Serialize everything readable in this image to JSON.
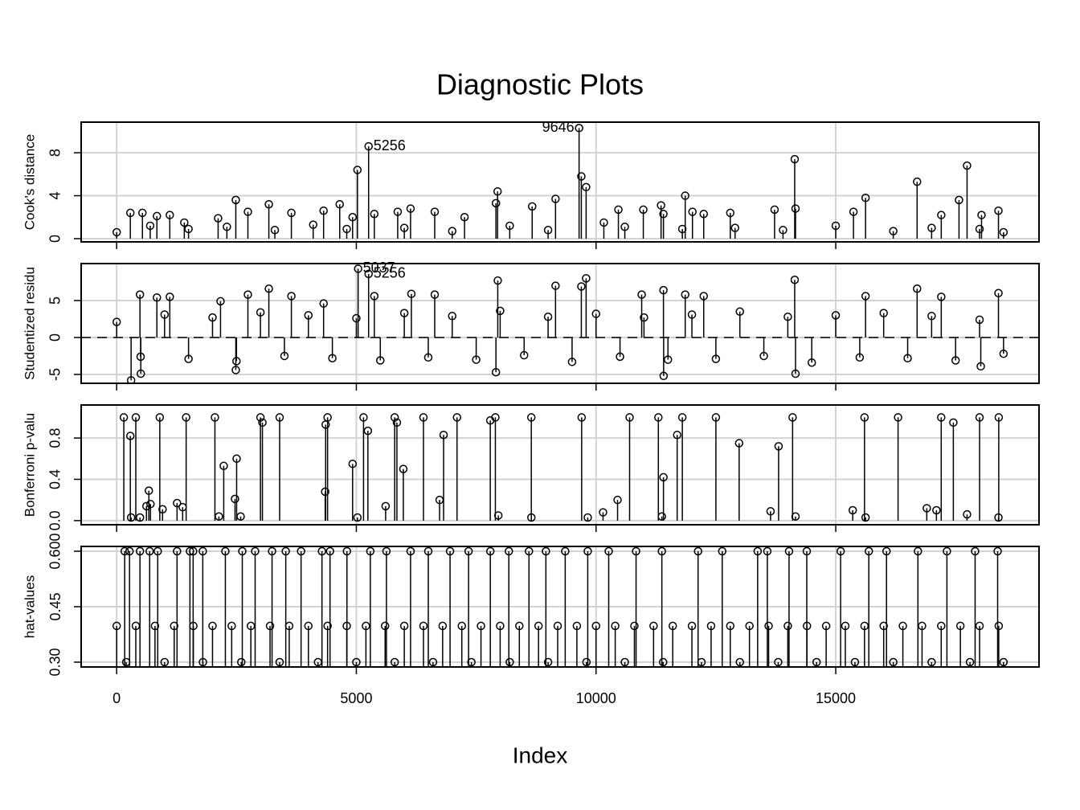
{
  "chart_data": [
    {
      "type": "stem",
      "title": "Diagnostic Plots",
      "ylabel": "Cook's distance",
      "xlim": [
        -740,
        19240
      ],
      "ylim": [
        -0.3,
        10.85
      ],
      "yticks": [
        0,
        4,
        8
      ],
      "xticks": [
        0,
        5000,
        10000,
        15000
      ],
      "grid": true,
      "color": "#000000",
      "series": [
        {
          "x": [
            286,
            538,
            840,
            1109,
            1411,
            2117,
            2486,
            2738,
            3175,
            3645,
            4317,
            4653,
            4922,
            5023,
            5256,
            5375,
            5863,
            6131,
            6635,
            7257,
            7912,
            7946,
            8668,
            9155,
            9646,
            9693,
            9793,
            10163,
            10466,
            10986,
            11356,
            11406,
            11860,
            12011,
            12246,
            12800,
            13724,
            14144,
            14161,
            15370,
            15622,
            16697,
            17201,
            17571,
            17739,
            18041,
            18394,
            1,
            700,
            1500,
            2300,
            3300,
            4100,
            4800,
            6000,
            7000,
            8200,
            9000,
            10600,
            11800,
            12900,
            13900,
            15000,
            16200,
            17000,
            18000,
            18500
          ],
          "values": [
            2.4,
            2.4,
            2.1,
            2.2,
            1.5,
            1.9,
            3.6,
            2.5,
            3.2,
            2.4,
            2.6,
            3.2,
            2.0,
            6.4,
            8.6,
            2.3,
            2.5,
            2.8,
            2.5,
            2.0,
            3.3,
            4.4,
            3.0,
            3.7,
            10.3,
            5.8,
            4.8,
            1.5,
            2.7,
            2.7,
            3.1,
            2.3,
            4.0,
            2.5,
            2.3,
            2.4,
            2.7,
            7.4,
            2.8,
            2.5,
            3.8,
            5.3,
            2.2,
            3.6,
            6.8,
            2.2,
            2.6,
            0.6,
            1.2,
            0.9,
            1.1,
            0.8,
            1.3,
            0.9,
            1.0,
            0.7,
            1.2,
            0.8,
            1.1,
            0.9,
            1.0,
            0.8,
            1.2,
            0.7,
            1.0,
            0.9,
            0.6
          ]
        }
      ],
      "annotations": [
        {
          "x": 9646,
          "y": 10.3,
          "text": "9646",
          "side": "left"
        },
        {
          "x": 5256,
          "y": 8.6,
          "text": "5256",
          "side": "right"
        }
      ]
    },
    {
      "type": "stem",
      "ylabel": "Studentized residu",
      "xlim": [
        -740,
        19240
      ],
      "ylim": [
        -6.2,
        10.0
      ],
      "yticks": [
        -5,
        0,
        5
      ],
      "xticks": [
        0,
        5000,
        10000,
        15000
      ],
      "grid": true,
      "reference_line": 0,
      "color": "#000000",
      "series": [
        {
          "x": [
            302,
            487,
            504,
            840,
            1109,
            2167,
            2486,
            2738,
            3175,
            3645,
            4317,
            5037,
            5256,
            5375,
            6148,
            6635,
            7912,
            7950,
            9155,
            9693,
            9793,
            10952,
            11406,
            11410,
            11860,
            12246,
            14144,
            14161,
            15622,
            16697,
            17201,
            18025,
            18394,
            1,
            500,
            1000,
            1500,
            2000,
            2500,
            3000,
            3500,
            4000,
            4500,
            5000,
            5500,
            6000,
            6500,
            7000,
            7500,
            8000,
            8500,
            9000,
            9500,
            10000,
            10500,
            11000,
            11500,
            12000,
            12500,
            13000,
            13500,
            14000,
            14500,
            15000,
            15500,
            16000,
            16500,
            17000,
            17500,
            18000,
            18500
          ],
          "values": [
            -5.8,
            5.8,
            -4.9,
            5.4,
            5.5,
            4.9,
            -4.4,
            5.8,
            6.6,
            5.6,
            4.6,
            9.3,
            8.6,
            5.6,
            5.9,
            5.8,
            -4.7,
            7.7,
            7.0,
            6.9,
            8.0,
            5.8,
            6.4,
            -5.2,
            5.8,
            5.6,
            7.8,
            -4.9,
            5.6,
            6.6,
            5.5,
            -3.9,
            6.0,
            2.1,
            -2.6,
            3.1,
            -2.9,
            2.7,
            -3.2,
            3.4,
            -2.5,
            3.0,
            -2.8,
            2.6,
            -3.1,
            3.3,
            -2.7,
            2.9,
            -3.0,
            3.6,
            -2.4,
            2.8,
            -3.3,
            3.2,
            -2.6,
            2.7,
            -3.0,
            3.1,
            -2.9,
            3.5,
            -2.5,
            2.8,
            -3.4,
            3.0,
            -2.7,
            3.3,
            -2.8,
            2.9,
            -3.1,
            2.4,
            -2.2
          ]
        }
      ],
      "annotations": [
        {
          "x": 5037,
          "y": 9.3,
          "text": "5037",
          "side": "right"
        },
        {
          "x": 5256,
          "y": 8.6,
          "text": "5256",
          "side": "right"
        }
      ]
    },
    {
      "type": "stem",
      "ylabel": "Bonferroni p-valu",
      "xlim": [
        -740,
        19240
      ],
      "ylim": [
        -0.04,
        1.12
      ],
      "yticks": [
        {
          "value": 0,
          "label": "0.0"
        },
        {
          "value": 0.4,
          "label": "0.4"
        },
        {
          "value": 0.8,
          "label": "0.8"
        }
      ],
      "xticks": [
        0,
        5000,
        10000,
        15000
      ],
      "grid": true,
      "color": "#000000",
      "series": [
        {
          "x": [
            286,
            302,
            487,
            622,
            672,
            706,
            958,
            1260,
            1377,
            2133,
            2234,
            2469,
            2503,
            2587,
            3041,
            4350,
            4360,
            4922,
            5023,
            5241,
            5611,
            5846,
            5980,
            6736,
            6820,
            7794,
            8651,
            10146,
            10449,
            11692,
            11406,
            12985,
            13640,
            13808,
            15354,
            16899,
            17100,
            17453,
            17739,
            7962,
            9827,
            11373,
            14161,
            18394,
            15622,
            150,
            400,
            900,
            1450,
            2050,
            3000,
            3400,
            4400,
            5150,
            5800,
            6400,
            7100,
            7900,
            8650,
            9700,
            10700,
            11300,
            11800,
            12500,
            14100,
            15600,
            16300,
            17200,
            18000,
            18400
          ],
          "values": [
            0.82,
            0.03,
            0.03,
            0.14,
            0.29,
            0.16,
            0.11,
            0.17,
            0.13,
            0.04,
            0.53,
            0.21,
            0.6,
            0.04,
            0.95,
            0.28,
            0.93,
            0.55,
            0.03,
            0.87,
            0.14,
            0.95,
            0.5,
            0.2,
            0.83,
            0.97,
            0.03,
            0.08,
            0.2,
            0.83,
            0.42,
            0.75,
            0.09,
            0.72,
            0.1,
            0.12,
            0.1,
            0.95,
            0.06,
            0.05,
            0.03,
            0.04,
            0.04,
            0.03,
            0.03,
            1,
            1,
            1,
            1,
            1,
            1,
            1,
            1,
            1,
            1,
            1,
            1,
            1,
            1,
            1,
            1,
            1,
            1,
            1,
            1,
            1,
            1,
            1,
            1,
            1
          ]
        }
      ]
    },
    {
      "type": "stem",
      "ylabel": "hat-values",
      "xlabel": "Index",
      "xlim": [
        -740,
        19240
      ],
      "ylim": [
        0.287,
        0.613
      ],
      "yticks": [
        {
          "value": 0.3,
          "label": "0.30"
        },
        {
          "value": 0.45,
          "label": "0.45"
        },
        {
          "value": 0.6,
          "label": "0.600"
        }
      ],
      "xticks": [
        0,
        5000,
        10000,
        15000
      ],
      "grid": true,
      "color": "#000000",
      "series": [
        {
          "x": [
            168,
            269,
            487,
            689,
            857,
            1260,
            1529,
            1596,
            1797,
            2268,
            2621,
            2889,
            3242,
            3528,
            3847,
            4283,
            4451,
            4804,
            5292,
            5628,
            6131,
            6501,
            6955,
            7341,
            7795,
            8181,
            8601,
            8954,
            9357,
            9827,
            10264,
            10835,
            11373,
            12128,
            12632,
            13371,
            13573,
            14026,
            14396,
            15102,
            15690,
            16059,
            16714,
            17319,
            17907,
            18377,
            1,
            400,
            800,
            1200,
            1600,
            2000,
            2400,
            2800,
            3200,
            3600,
            4000,
            4400,
            4800,
            5200,
            5600,
            6000,
            6400,
            6800,
            7200,
            7600,
            8000,
            8400,
            8800,
            9200,
            9600,
            10000,
            10400,
            10800,
            11200,
            11600,
            12000,
            12400,
            12800,
            13200,
            13600,
            14000,
            14400,
            14800,
            15200,
            15600,
            16000,
            16400,
            16800,
            17200,
            17600,
            18000,
            18400,
            200,
            1000,
            1800,
            2600,
            3400,
            4200,
            5000,
            5800,
            6600,
            7400,
            8200,
            9000,
            9800,
            10600,
            11400,
            12200,
            13000,
            13800,
            14600,
            15400,
            16200,
            17000,
            17800,
            18500
          ],
          "values": [
            0.6,
            0.6,
            0.6,
            0.6,
            0.6,
            0.6,
            0.6,
            0.6,
            0.6,
            0.6,
            0.6,
            0.6,
            0.6,
            0.6,
            0.6,
            0.6,
            0.6,
            0.6,
            0.6,
            0.6,
            0.6,
            0.6,
            0.6,
            0.6,
            0.6,
            0.6,
            0.6,
            0.6,
            0.6,
            0.6,
            0.6,
            0.6,
            0.6,
            0.6,
            0.6,
            0.6,
            0.6,
            0.6,
            0.6,
            0.6,
            0.6,
            0.6,
            0.6,
            0.6,
            0.6,
            0.6,
            0.398,
            0.398,
            0.398,
            0.398,
            0.398,
            0.398,
            0.398,
            0.398,
            0.398,
            0.398,
            0.398,
            0.398,
            0.398,
            0.398,
            0.398,
            0.398,
            0.398,
            0.398,
            0.398,
            0.398,
            0.398,
            0.398,
            0.398,
            0.398,
            0.398,
            0.398,
            0.398,
            0.398,
            0.398,
            0.398,
            0.398,
            0.398,
            0.398,
            0.398,
            0.398,
            0.398,
            0.398,
            0.398,
            0.398,
            0.398,
            0.398,
            0.398,
            0.398,
            0.398,
            0.398,
            0.398,
            0.398,
            0.3,
            0.3,
            0.3,
            0.3,
            0.3,
            0.3,
            0.3,
            0.3,
            0.3,
            0.3,
            0.3,
            0.3,
            0.3,
            0.3,
            0.3,
            0.3,
            0.3,
            0.3,
            0.3,
            0.3,
            0.3,
            0.3,
            0.3,
            0.3
          ]
        }
      ]
    }
  ]
}
